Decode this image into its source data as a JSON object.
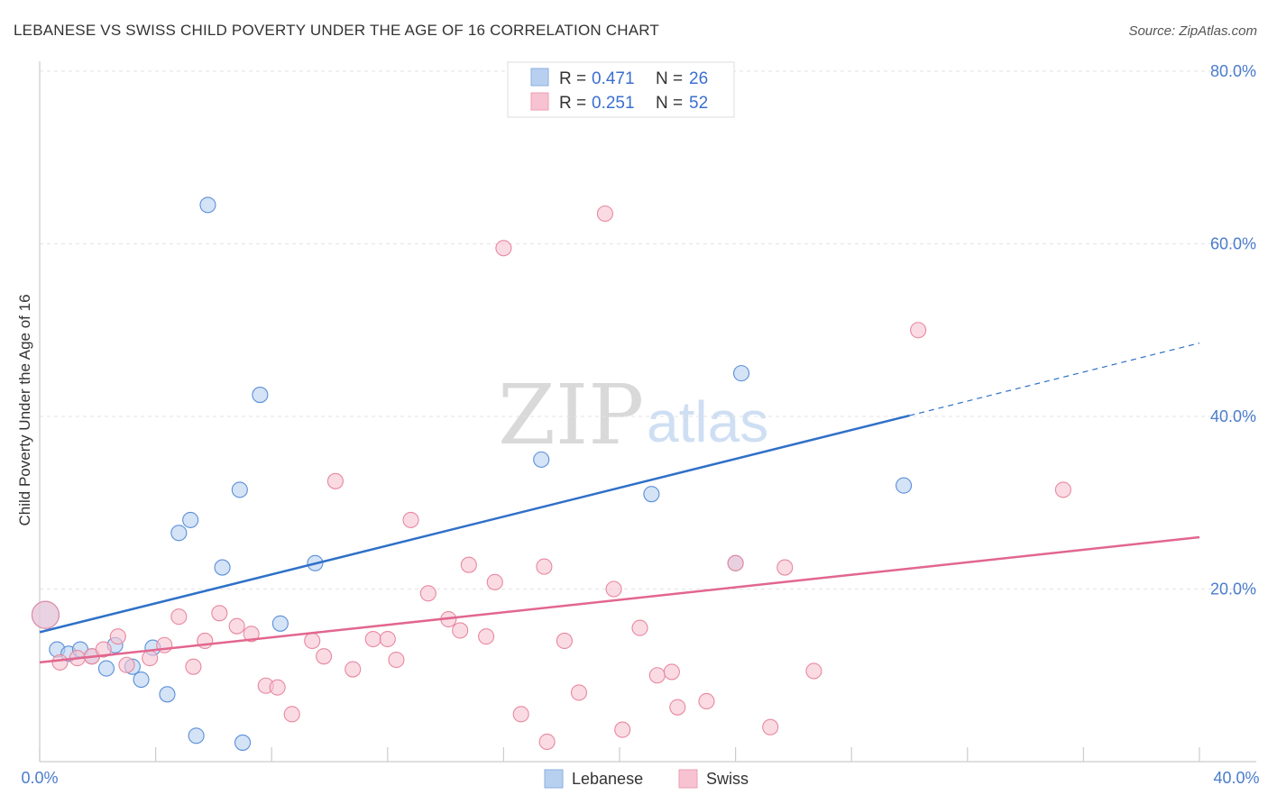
{
  "chart_data": {
    "type": "scatter",
    "title": "LEBANESE VS SWISS CHILD POVERTY UNDER THE AGE OF 16 CORRELATION CHART",
    "source": "Source: ZipAtlas.com",
    "xlabel": "",
    "ylabel": "Child Poverty Under the Age of 16",
    "xlim": [
      0,
      40
    ],
    "ylim": [
      0,
      80
    ],
    "x_tick_labels": [
      "0.0%",
      "40.0%"
    ],
    "y_ticks": [
      20,
      40,
      60,
      80
    ],
    "y_tick_labels": [
      "20.0%",
      "40.0%",
      "60.0%",
      "80.0%"
    ],
    "grid": true,
    "watermark": {
      "zip": "ZIP",
      "atlas": "atlas"
    },
    "legend_stats": [
      {
        "r_label": "R = ",
        "r_value": "0.471",
        "n_label": "N = ",
        "n_value": "26"
      },
      {
        "r_label": "R = ",
        "r_value": "0.251",
        "n_label": "N = ",
        "n_value": "52"
      }
    ],
    "series": [
      {
        "name": "Lebanese",
        "color": "#5b8fd9",
        "fill": "#b8d0f0",
        "trend": {
          "x0": 0,
          "y0": 15.0,
          "x1": 30,
          "y1": 40.1,
          "dash_x1": 40,
          "dash_y1": 48.5,
          "color": "#2f70c8"
        },
        "points": [
          [
            0.2,
            17.0
          ],
          [
            0.6,
            13.0
          ],
          [
            1.0,
            12.5
          ],
          [
            1.4,
            13.0
          ],
          [
            1.8,
            12.2
          ],
          [
            2.3,
            10.8
          ],
          [
            2.6,
            13.5
          ],
          [
            3.2,
            11.0
          ],
          [
            3.5,
            9.5
          ],
          [
            3.9,
            13.2
          ],
          [
            4.4,
            7.8
          ],
          [
            4.8,
            26.5
          ],
          [
            5.2,
            28.0
          ],
          [
            5.4,
            3.0
          ],
          [
            5.8,
            64.5
          ],
          [
            6.3,
            22.5
          ],
          [
            6.9,
            31.5
          ],
          [
            7.0,
            2.2
          ],
          [
            7.6,
            42.5
          ],
          [
            8.3,
            16.0
          ],
          [
            9.5,
            23.0
          ],
          [
            17.3,
            35.0
          ],
          [
            21.1,
            31.0
          ],
          [
            24.0,
            23.0
          ],
          [
            24.2,
            45.0
          ],
          [
            29.8,
            32.0
          ]
        ]
      },
      {
        "name": "Swiss",
        "color": "#e8889f",
        "fill": "#f7c3d2",
        "trend": {
          "x0": 0,
          "y0": 11.5,
          "x1": 40,
          "y1": 26.0,
          "color": "#e2668e"
        },
        "points": [
          [
            0.2,
            17.0
          ],
          [
            0.7,
            11.5
          ],
          [
            1.3,
            12.0
          ],
          [
            1.8,
            12.2
          ],
          [
            2.2,
            13.0
          ],
          [
            2.7,
            14.5
          ],
          [
            3.0,
            11.2
          ],
          [
            3.8,
            12.0
          ],
          [
            4.3,
            13.5
          ],
          [
            4.8,
            16.8
          ],
          [
            5.3,
            11.0
          ],
          [
            5.7,
            14.0
          ],
          [
            6.2,
            17.2
          ],
          [
            6.8,
            15.7
          ],
          [
            7.3,
            14.8
          ],
          [
            7.8,
            8.8
          ],
          [
            8.2,
            8.6
          ],
          [
            8.7,
            5.5
          ],
          [
            9.4,
            14.0
          ],
          [
            9.8,
            12.2
          ],
          [
            10.2,
            32.5
          ],
          [
            10.8,
            10.7
          ],
          [
            11.5,
            14.2
          ],
          [
            12.0,
            14.2
          ],
          [
            12.3,
            11.8
          ],
          [
            12.8,
            28.0
          ],
          [
            13.4,
            19.5
          ],
          [
            14.1,
            16.5
          ],
          [
            14.5,
            15.2
          ],
          [
            14.8,
            22.8
          ],
          [
            15.4,
            14.5
          ],
          [
            15.7,
            20.8
          ],
          [
            16.0,
            59.5
          ],
          [
            16.6,
            5.5
          ],
          [
            17.4,
            22.6
          ],
          [
            17.5,
            2.3
          ],
          [
            18.1,
            14.0
          ],
          [
            18.6,
            8.0
          ],
          [
            19.5,
            63.5
          ],
          [
            19.8,
            20.0
          ],
          [
            20.1,
            3.7
          ],
          [
            20.7,
            15.5
          ],
          [
            21.3,
            10.0
          ],
          [
            21.8,
            10.4
          ],
          [
            22.0,
            6.3
          ],
          [
            23.0,
            7.0
          ],
          [
            24.0,
            23.0
          ],
          [
            25.2,
            4.0
          ],
          [
            25.7,
            22.5
          ],
          [
            26.7,
            10.5
          ],
          [
            30.3,
            50.0
          ],
          [
            35.3,
            31.5
          ]
        ]
      }
    ]
  }
}
